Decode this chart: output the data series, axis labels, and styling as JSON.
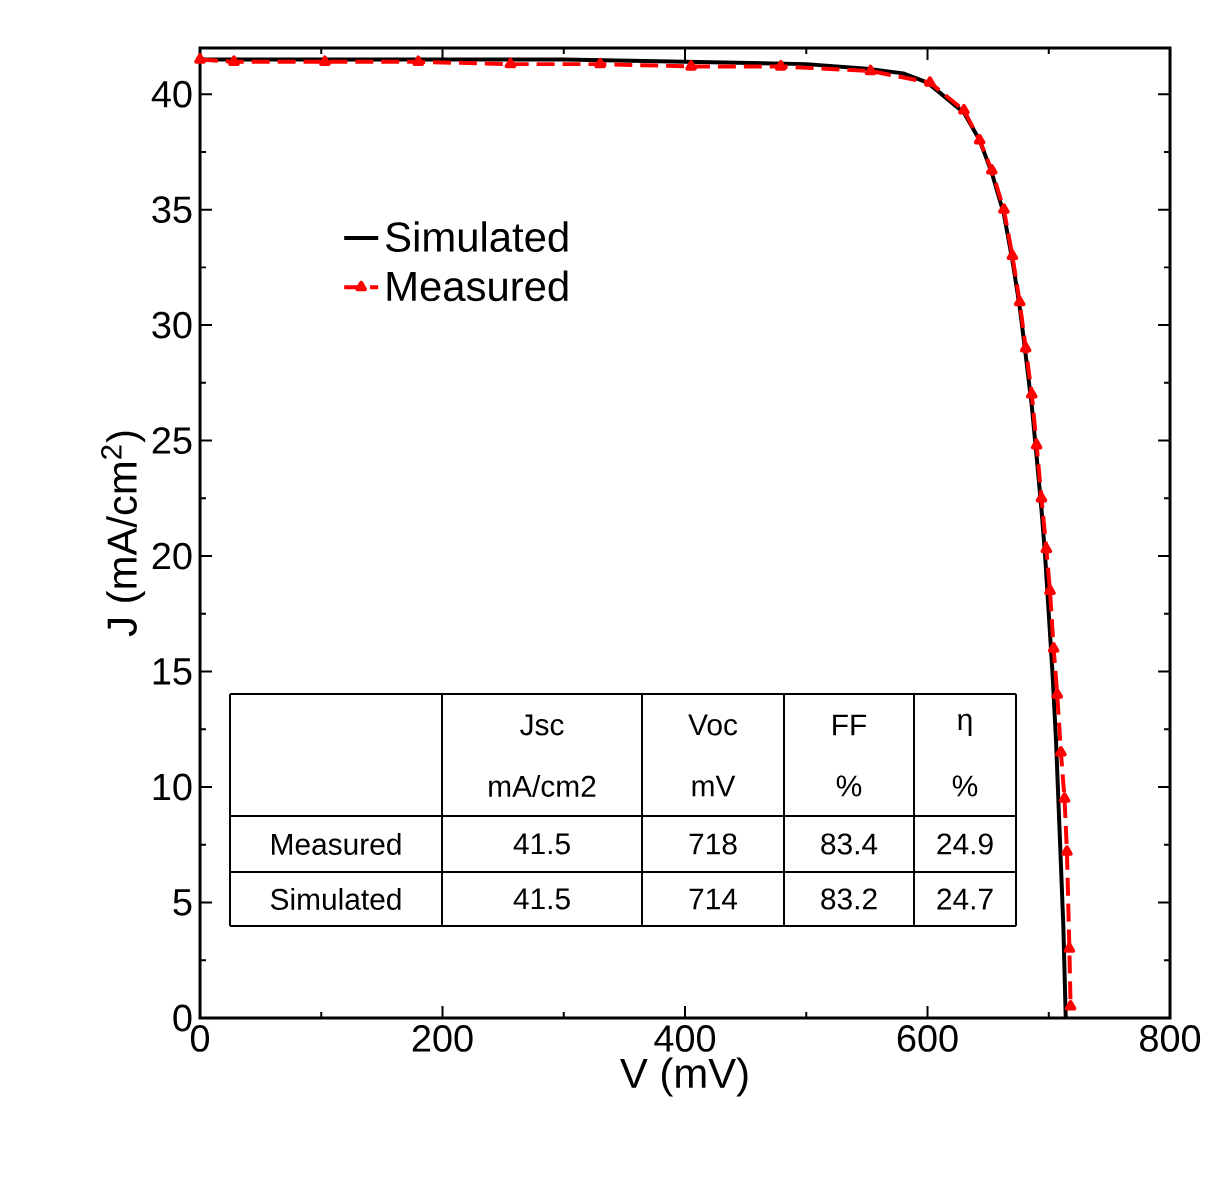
{
  "chart_data": {
    "type": "line",
    "xlabel": "V (mV)",
    "ylabel": "J (mA/cm$^{2}$)",
    "xlim": [
      0,
      800
    ],
    "ylim": [
      0,
      42
    ],
    "xticks": [
      0,
      200,
      400,
      600,
      800
    ],
    "yticks": [
      0,
      5,
      10,
      15,
      20,
      25,
      30,
      35,
      40
    ],
    "legend": "top left",
    "grid": false,
    "series": [
      {
        "name": "Simulated",
        "color": "#000000",
        "line_style": "solid",
        "marker": "none",
        "x": [
          0,
          100,
          200,
          300,
          400,
          500,
          550,
          580,
          600,
          630,
          643,
          653,
          663,
          670,
          676,
          681,
          686,
          690,
          694,
          697,
          700,
          703,
          706,
          709,
          712,
          714
        ],
        "values": [
          41.5,
          41.5,
          41.5,
          41.5,
          41.4,
          41.3,
          41.1,
          40.9,
          40.5,
          39.2,
          38.0,
          36.6,
          34.8,
          32.8,
          30.8,
          28.7,
          26.5,
          24.3,
          22.0,
          20.0,
          17.5,
          15.0,
          12.0,
          8.0,
          4.0,
          0
        ]
      },
      {
        "name": "Measured",
        "color": "#ff0000",
        "line_style": "dashed",
        "marker": "triangle",
        "x": [
          0,
          28,
          103,
          180,
          256,
          330,
          405,
          479,
          553,
          602,
          630,
          643,
          653,
          663,
          670,
          676,
          681,
          686,
          690,
          694,
          698,
          701,
          704,
          707,
          710,
          713,
          715,
          717,
          718
        ],
        "values": [
          41.5,
          41.4,
          41.4,
          41.4,
          41.3,
          41.3,
          41.2,
          41.2,
          41.0,
          40.5,
          39.3,
          38.0,
          36.7,
          35.0,
          33.0,
          31.0,
          29.0,
          27.0,
          24.8,
          22.5,
          20.3,
          18.5,
          16.0,
          14.0,
          11.5,
          9.5,
          7.2,
          3.0,
          0.5
        ]
      }
    ],
    "annotations": [
      "Jsc",
      "Voc",
      "FF",
      "η",
      "mA/cm2",
      "mV",
      "%",
      "%",
      "Measured",
      "41.5",
      "718",
      "83.4",
      "24.9",
      "Simulated",
      "41.5",
      "714",
      "83.2",
      "24.7"
    ]
  }
}
